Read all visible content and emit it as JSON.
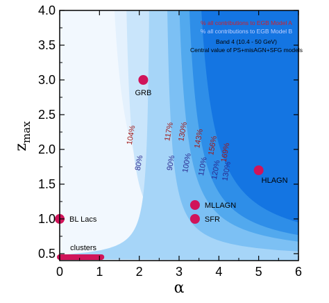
{
  "chart_data": {
    "type": "area",
    "xlabel": "α",
    "ylabel_main": "z",
    "ylabel_sub": "max",
    "xlim": [
      0,
      6
    ],
    "ylim": [
      0.4,
      4.0
    ],
    "xticks": [
      0,
      1,
      2,
      3,
      4,
      5,
      6
    ],
    "xtick_labels": [
      "0",
      "1",
      "2",
      "3",
      "4",
      "5",
      "6"
    ],
    "yticks": [
      0.5,
      1.0,
      1.5,
      2.0,
      2.5,
      3.0,
      3.5,
      4.0
    ],
    "ytick_labels": [
      "0.5",
      "1.0",
      "1.5",
      "2.0",
      "2.5",
      "3.0",
      "3.5",
      "4.0"
    ],
    "grid": false,
    "legend": {
      "placement": "top-right",
      "lines": [
        {
          "text": "% all contributions to EGB Model A",
          "color": "#d0202a"
        },
        {
          "text": "% all contributions to EGB Model B",
          "color": "#c0d0ff"
        },
        {
          "text": "Band 4 (10.4 - 50 GeV)",
          "color": "#000000"
        },
        {
          "text": "Central value of PS+misAGN+SFG models",
          "color": "#000000"
        }
      ]
    },
    "regions": [
      {
        "x_asym": 1.05,
        "level": 0.58,
        "alpha0": 1.7,
        "color": "#e4f1fd"
      },
      {
        "x_asym": 1.55,
        "level": 0.48,
        "alpha0": 1.8,
        "color": "#c9e5fb"
      },
      {
        "x_asym": 2.3,
        "level": 0.4,
        "alpha0": 2.2,
        "color": "#a6d5f8"
      },
      {
        "x_asym": 2.6,
        "level": 0.42,
        "alpha0": 2.8,
        "color": "#7cc0f4"
      },
      {
        "x_asym": 2.8,
        "level": 0.44,
        "alpha0": 3.2,
        "color": "#52a9ee"
      },
      {
        "x_asym": 3.0,
        "level": 0.46,
        "alpha0": 3.5,
        "color": "#2e8ee8"
      },
      {
        "x_asym": 3.2,
        "level": 0.5,
        "alpha0": 3.9,
        "color": "#1475e2"
      }
    ],
    "background_color": "#f2f8fe",
    "points": [
      {
        "name": "GRB",
        "x": 2.1,
        "y": 3.0
      },
      {
        "name": "HLAGN",
        "x": 5.0,
        "y": 1.7
      },
      {
        "name": "MLLAGN",
        "x": 3.4,
        "y": 1.2
      },
      {
        "name": "SFR",
        "x": 3.4,
        "y": 1.0
      },
      {
        "name": "BL Lacs",
        "x": 0.0,
        "y": 1.0
      }
    ],
    "segments": [
      {
        "name": "clusters",
        "x0": 0.0,
        "x1": 1.05,
        "y": 0.45
      }
    ],
    "marker_color": "#d0145a",
    "contour_labels_model_a": [
      {
        "text": "104%",
        "x": 1.85,
        "y": 2.2,
        "color": "#a01a1a"
      },
      {
        "text": "117%",
        "x": 2.8,
        "y": 2.25,
        "color": "#a01a1a"
      },
      {
        "text": "130%",
        "x": 3.15,
        "y": 2.25,
        "color": "#a01a1a"
      },
      {
        "text": "143%",
        "x": 3.55,
        "y": 2.15,
        "color": "#a01a1a"
      },
      {
        "text": "156%",
        "x": 3.9,
        "y": 2.05,
        "color": "#a01a1a"
      },
      {
        "text": "169%",
        "x": 4.22,
        "y": 1.95,
        "color": "#a01a1a"
      }
    ],
    "contour_labels_model_b": [
      {
        "text": "80%",
        "x": 2.05,
        "y": 1.8,
        "color": "#2a2a90"
      },
      {
        "text": "90%",
        "x": 2.85,
        "y": 1.8,
        "color": "#2a2a90"
      },
      {
        "text": "100%",
        "x": 3.25,
        "y": 1.8,
        "color": "#2a2a90"
      },
      {
        "text": "110%",
        "x": 3.65,
        "y": 1.75,
        "color": "#2a2a90"
      },
      {
        "text": "120%",
        "x": 3.98,
        "y": 1.7,
        "color": "#2a2a90"
      },
      {
        "text": "130%",
        "x": 4.25,
        "y": 1.68,
        "color": "#2a2a90"
      }
    ]
  }
}
